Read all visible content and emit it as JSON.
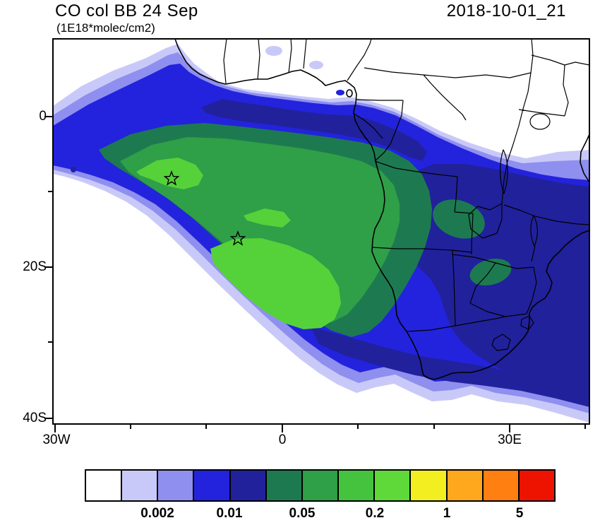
{
  "header": {
    "title": "CO col BB 24 Sep",
    "subtitle": "(1E18*molec/cm2)",
    "timestamp": "2018-10-01_21"
  },
  "chart_data": {
    "type": "heatmap",
    "title": "CO col BB 24 Sep",
    "units": "1E18*molec/cm2",
    "valid_time": "2018-10-01_21",
    "description": "Filled contour map of CO column from biomass burning; plume extends from southern Africa westward over the South Atlantic; coastlines and country borders overlaid",
    "x_axis": {
      "ticks": [
        "30W",
        "0",
        "30E"
      ],
      "range_deg_lon": [
        -30,
        40
      ]
    },
    "y_axis": {
      "ticks": [
        "0",
        "20S",
        "40S"
      ],
      "range_deg_lat": [
        10,
        -40
      ]
    },
    "colorbar": {
      "colors": [
        "#ffffff",
        "#c9c9f9",
        "#8f8ff0",
        "#2323dd",
        "#21219c",
        "#1d7a50",
        "#2f9f48",
        "#45c33e",
        "#5fd83a",
        "#f2ee1f",
        "#ffa81e",
        "#ff7f10",
        "#ee1200"
      ],
      "labels": [
        "0.002",
        "0.01",
        "0.05",
        "0.2",
        "1",
        "5"
      ]
    },
    "markers": [
      {
        "symbol": "star",
        "lon_approx": -14.6,
        "lat_approx": -8.3
      },
      {
        "symbol": "star",
        "lon_approx": -5.9,
        "lat_approx": -16.2
      }
    ]
  }
}
